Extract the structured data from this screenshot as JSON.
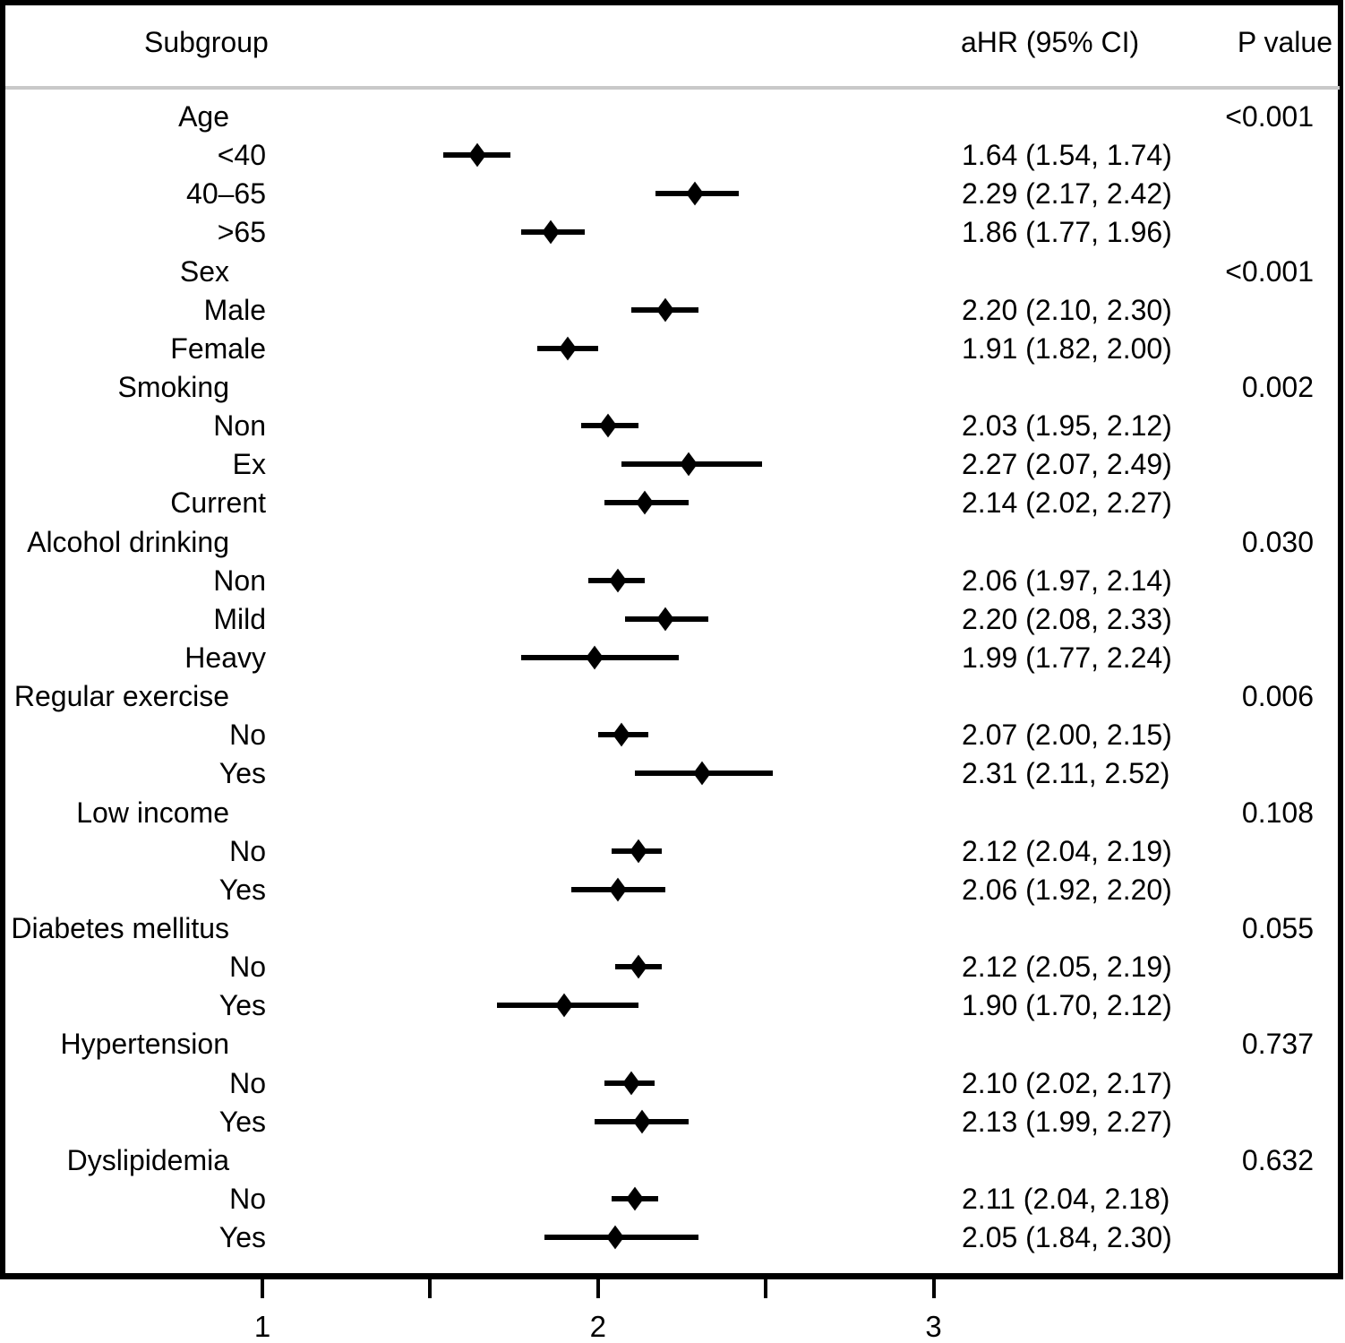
{
  "header": {
    "subgroup": "Subgroup",
    "ahr": "aHR (95% CI)",
    "pvalue": "P value"
  },
  "colors": {
    "text": "#000000",
    "marker": "#000000",
    "border": "#000000",
    "separator": "#c9c9c9",
    "background": "#ffffff"
  },
  "chart_data": {
    "type": "forest",
    "title": "",
    "columns": [
      "Subgroup",
      "aHR (95% CI)",
      "P value"
    ],
    "x_axis": {
      "tick_values": [
        1,
        1.5,
        2,
        2.5,
        3
      ],
      "labeled_ticks": [
        1,
        2,
        3
      ],
      "tick_labels": [
        "1",
        "2",
        "3"
      ],
      "range": [
        0.77,
        3.2
      ],
      "scale": "linear",
      "grid": false
    },
    "marker_shape": "filled-diamond",
    "groups": [
      {
        "label": "Age",
        "p_value": "<0.001",
        "items": [
          {
            "label": "<40",
            "est": 1.64,
            "lo": 1.54,
            "hi": 1.74,
            "ahr_text": "1.64 (1.54, 1.74)"
          },
          {
            "label": "40–65",
            "est": 2.29,
            "lo": 2.17,
            "hi": 2.42,
            "ahr_text": "2.29 (2.17, 2.42)"
          },
          {
            "label": ">65",
            "est": 1.86,
            "lo": 1.77,
            "hi": 1.96,
            "ahr_text": "1.86 (1.77, 1.96)"
          }
        ]
      },
      {
        "label": "Sex",
        "p_value": "<0.001",
        "items": [
          {
            "label": "Male",
            "est": 2.2,
            "lo": 2.1,
            "hi": 2.3,
            "ahr_text": "2.20 (2.10, 2.30)"
          },
          {
            "label": "Female",
            "est": 1.91,
            "lo": 1.82,
            "hi": 2.0,
            "ahr_text": "1.91 (1.82, 2.00)"
          }
        ]
      },
      {
        "label": "Smoking",
        "p_value": "0.002",
        "items": [
          {
            "label": "Non",
            "est": 2.03,
            "lo": 1.95,
            "hi": 2.12,
            "ahr_text": "2.03 (1.95, 2.12)"
          },
          {
            "label": "Ex",
            "est": 2.27,
            "lo": 2.07,
            "hi": 2.49,
            "ahr_text": "2.27 (2.07, 2.49)"
          },
          {
            "label": "Current",
            "est": 2.14,
            "lo": 2.02,
            "hi": 2.27,
            "ahr_text": "2.14 (2.02, 2.27)"
          }
        ]
      },
      {
        "label": "Alcohol drinking",
        "p_value": "0.030",
        "items": [
          {
            "label": "Non",
            "est": 2.06,
            "lo": 1.97,
            "hi": 2.14,
            "ahr_text": "2.06 (1.97, 2.14)"
          },
          {
            "label": "Mild",
            "est": 2.2,
            "lo": 2.08,
            "hi": 2.33,
            "ahr_text": "2.20 (2.08, 2.33)"
          },
          {
            "label": "Heavy",
            "est": 1.99,
            "lo": 1.77,
            "hi": 2.24,
            "ahr_text": "1.99 (1.77, 2.24)"
          }
        ]
      },
      {
        "label": "Regular exercise",
        "p_value": "0.006",
        "items": [
          {
            "label": "No",
            "est": 2.07,
            "lo": 2.0,
            "hi": 2.15,
            "ahr_text": "2.07 (2.00, 2.15)"
          },
          {
            "label": "Yes",
            "est": 2.31,
            "lo": 2.11,
            "hi": 2.52,
            "ahr_text": "2.31 (2.11, 2.52)"
          }
        ]
      },
      {
        "label": "Low income",
        "p_value": "0.108",
        "items": [
          {
            "label": "No",
            "est": 2.12,
            "lo": 2.04,
            "hi": 2.19,
            "ahr_text": "2.12 (2.04, 2.19)"
          },
          {
            "label": "Yes",
            "est": 2.06,
            "lo": 1.92,
            "hi": 2.2,
            "ahr_text": "2.06 (1.92, 2.20)"
          }
        ]
      },
      {
        "label": "Diabetes mellitus",
        "p_value": "0.055",
        "items": [
          {
            "label": "No",
            "est": 2.12,
            "lo": 2.05,
            "hi": 2.19,
            "ahr_text": "2.12 (2.05, 2.19)"
          },
          {
            "label": "Yes",
            "est": 1.9,
            "lo": 1.7,
            "hi": 2.12,
            "ahr_text": "1.90 (1.70, 2.12)"
          }
        ]
      },
      {
        "label": "Hypertension",
        "p_value": "0.737",
        "items": [
          {
            "label": "No",
            "est": 2.1,
            "lo": 2.02,
            "hi": 2.17,
            "ahr_text": "2.10 (2.02, 2.17)"
          },
          {
            "label": "Yes",
            "est": 2.13,
            "lo": 1.99,
            "hi": 2.27,
            "ahr_text": "2.13 (1.99, 2.27)"
          }
        ]
      },
      {
        "label": "Dyslipidemia",
        "p_value": "0.632",
        "items": [
          {
            "label": "No",
            "est": 2.11,
            "lo": 2.04,
            "hi": 2.18,
            "ahr_text": "2.11 (2.04, 2.18)"
          },
          {
            "label": "Yes",
            "est": 2.05,
            "lo": 1.84,
            "hi": 2.3,
            "ahr_text": "2.05 (1.84, 2.30)"
          }
        ]
      }
    ]
  }
}
